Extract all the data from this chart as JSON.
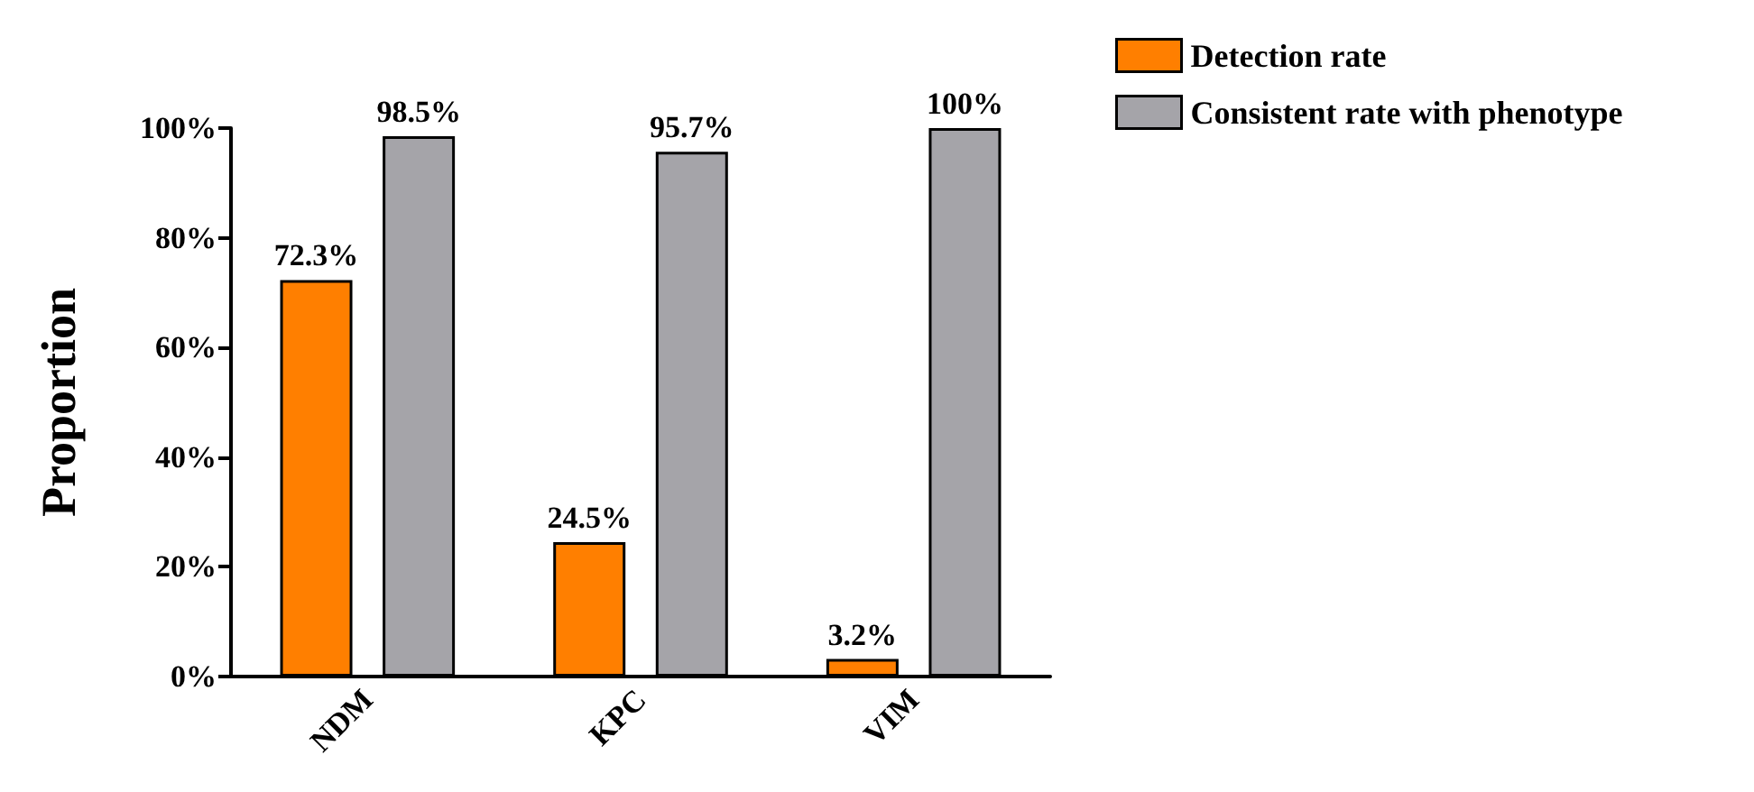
{
  "chart_data": {
    "type": "bar",
    "ylabel": "Proportion",
    "categories": [
      "NDM",
      "KPC",
      "VIM"
    ],
    "series": [
      {
        "name": "Detection rate",
        "color": "#ff7f00",
        "values": [
          72.3,
          24.5,
          3.2
        ],
        "value_labels": [
          "72.3%",
          "24.5%",
          "3.2%"
        ]
      },
      {
        "name": "Consistent rate with phenotype",
        "color": "#a5a4a9",
        "values": [
          98.5,
          95.7,
          100
        ],
        "value_labels": [
          "98.5%",
          "95.7%",
          "100%"
        ]
      }
    ],
    "ylim": [
      0,
      100
    ],
    "yticks": [
      {
        "value": 0,
        "label": "0%"
      },
      {
        "value": 20,
        "label": "20%"
      },
      {
        "value": 40,
        "label": "40%"
      },
      {
        "value": 60,
        "label": "60%"
      },
      {
        "value": 80,
        "label": "80%"
      },
      {
        "value": 100,
        "label": "100%"
      }
    ],
    "grid": false,
    "legend": "top right"
  }
}
